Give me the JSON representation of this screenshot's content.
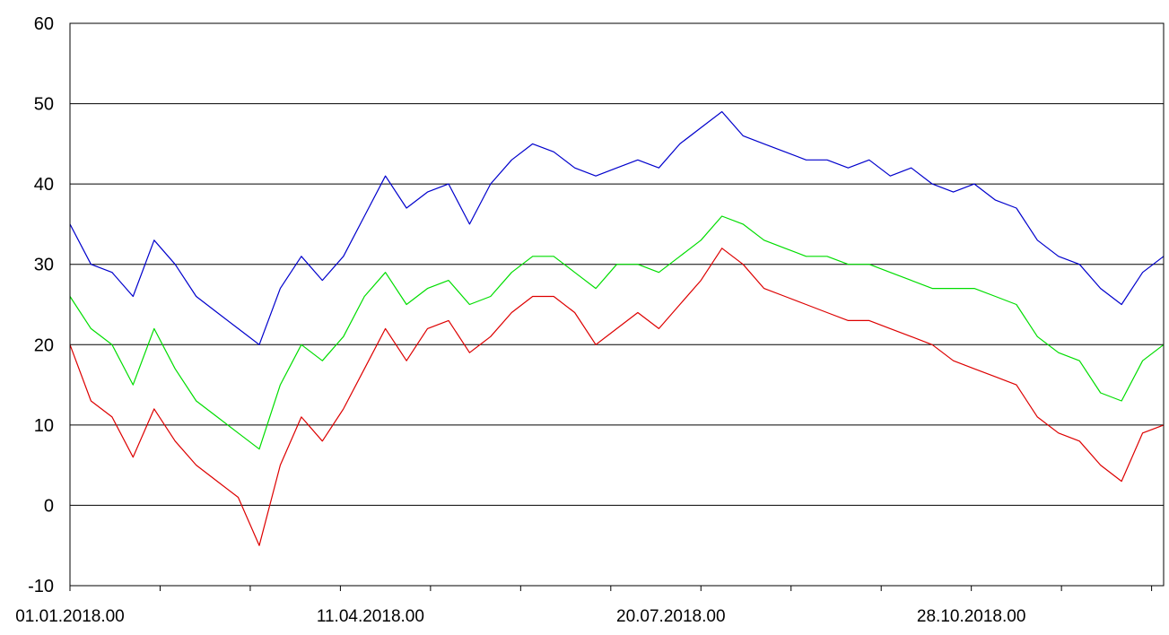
{
  "chart_data": {
    "type": "line",
    "title": "",
    "xlabel": "",
    "ylabel": "",
    "x_range": [
      "2018-01-01",
      "2018-12-31"
    ],
    "ylim": [
      -10,
      60
    ],
    "y_ticks": [
      -10,
      0,
      10,
      20,
      30,
      40,
      50,
      60
    ],
    "y_tick_labels": [
      "-10",
      "0",
      "10",
      "20",
      "30",
      "40",
      "50",
      "60"
    ],
    "x_tick_dates": [
      "2018-01-01",
      "2018-01-31",
      "2018-03-02",
      "2018-04-01",
      "2018-05-01",
      "2018-05-31",
      "2018-06-30",
      "2018-07-30",
      "2018-08-29",
      "2018-09-28",
      "2018-10-28",
      "2018-11-27",
      "2018-12-27"
    ],
    "x_labels": [
      {
        "date": "2018-01-01",
        "text": "01.01.2018.00"
      },
      {
        "date": "2018-04-11",
        "text": "11.04.2018.00"
      },
      {
        "date": "2018-07-20",
        "text": "20.07.2018.00"
      },
      {
        "date": "2018-10-28",
        "text": "28.10.2018.00"
      }
    ],
    "grid": "horizontal",
    "legend": "none",
    "series": [
      {
        "color": "#0000cc",
        "points": [
          [
            "2018-01-01",
            35
          ],
          [
            "2018-01-08",
            30
          ],
          [
            "2018-01-15",
            29
          ],
          [
            "2018-01-22",
            26
          ],
          [
            "2018-01-29",
            33
          ],
          [
            "2018-02-05",
            30
          ],
          [
            "2018-02-12",
            26
          ],
          [
            "2018-02-19",
            24
          ],
          [
            "2018-02-26",
            22
          ],
          [
            "2018-03-05",
            20
          ],
          [
            "2018-03-12",
            27
          ],
          [
            "2018-03-19",
            31
          ],
          [
            "2018-03-26",
            28
          ],
          [
            "2018-04-02",
            31
          ],
          [
            "2018-04-09",
            36
          ],
          [
            "2018-04-16",
            41
          ],
          [
            "2018-04-23",
            37
          ],
          [
            "2018-04-30",
            39
          ],
          [
            "2018-05-07",
            40
          ],
          [
            "2018-05-14",
            35
          ],
          [
            "2018-05-21",
            40
          ],
          [
            "2018-05-28",
            43
          ],
          [
            "2018-06-04",
            45
          ],
          [
            "2018-06-11",
            44
          ],
          [
            "2018-06-18",
            42
          ],
          [
            "2018-06-25",
            41
          ],
          [
            "2018-07-02",
            42
          ],
          [
            "2018-07-09",
            43
          ],
          [
            "2018-07-16",
            42
          ],
          [
            "2018-07-23",
            45
          ],
          [
            "2018-07-30",
            47
          ],
          [
            "2018-08-06",
            49
          ],
          [
            "2018-08-13",
            46
          ],
          [
            "2018-08-20",
            45
          ],
          [
            "2018-08-27",
            44
          ],
          [
            "2018-09-03",
            43
          ],
          [
            "2018-09-10",
            43
          ],
          [
            "2018-09-17",
            42
          ],
          [
            "2018-09-24",
            43
          ],
          [
            "2018-10-01",
            41
          ],
          [
            "2018-10-08",
            42
          ],
          [
            "2018-10-15",
            40
          ],
          [
            "2018-10-22",
            39
          ],
          [
            "2018-10-29",
            40
          ],
          [
            "2018-11-05",
            38
          ],
          [
            "2018-11-12",
            37
          ],
          [
            "2018-11-19",
            33
          ],
          [
            "2018-11-26",
            31
          ],
          [
            "2018-12-03",
            30
          ],
          [
            "2018-12-10",
            27
          ],
          [
            "2018-12-17",
            25
          ],
          [
            "2018-12-24",
            29
          ],
          [
            "2018-12-31",
            31
          ]
        ]
      },
      {
        "color": "#00dd00",
        "points": [
          [
            "2018-01-01",
            26
          ],
          [
            "2018-01-08",
            22
          ],
          [
            "2018-01-15",
            20
          ],
          [
            "2018-01-22",
            15
          ],
          [
            "2018-01-29",
            22
          ],
          [
            "2018-02-05",
            17
          ],
          [
            "2018-02-12",
            13
          ],
          [
            "2018-02-19",
            11
          ],
          [
            "2018-02-26",
            9
          ],
          [
            "2018-03-05",
            7
          ],
          [
            "2018-03-12",
            15
          ],
          [
            "2018-03-19",
            20
          ],
          [
            "2018-03-26",
            18
          ],
          [
            "2018-04-02",
            21
          ],
          [
            "2018-04-09",
            26
          ],
          [
            "2018-04-16",
            29
          ],
          [
            "2018-04-23",
            25
          ],
          [
            "2018-04-30",
            27
          ],
          [
            "2018-05-07",
            28
          ],
          [
            "2018-05-14",
            25
          ],
          [
            "2018-05-21",
            26
          ],
          [
            "2018-05-28",
            29
          ],
          [
            "2018-06-04",
            31
          ],
          [
            "2018-06-11",
            31
          ],
          [
            "2018-06-18",
            29
          ],
          [
            "2018-06-25",
            27
          ],
          [
            "2018-07-02",
            30
          ],
          [
            "2018-07-09",
            30
          ],
          [
            "2018-07-16",
            29
          ],
          [
            "2018-07-23",
            31
          ],
          [
            "2018-07-30",
            33
          ],
          [
            "2018-08-06",
            36
          ],
          [
            "2018-08-13",
            35
          ],
          [
            "2018-08-20",
            33
          ],
          [
            "2018-08-27",
            32
          ],
          [
            "2018-09-03",
            31
          ],
          [
            "2018-09-10",
            31
          ],
          [
            "2018-09-17",
            30
          ],
          [
            "2018-09-24",
            30
          ],
          [
            "2018-10-01",
            29
          ],
          [
            "2018-10-08",
            28
          ],
          [
            "2018-10-15",
            27
          ],
          [
            "2018-10-22",
            27
          ],
          [
            "2018-10-29",
            27
          ],
          [
            "2018-11-05",
            26
          ],
          [
            "2018-11-12",
            25
          ],
          [
            "2018-11-19",
            21
          ],
          [
            "2018-11-26",
            19
          ],
          [
            "2018-12-03",
            18
          ],
          [
            "2018-12-10",
            14
          ],
          [
            "2018-12-17",
            13
          ],
          [
            "2018-12-24",
            18
          ],
          [
            "2018-12-31",
            20
          ]
        ]
      },
      {
        "color": "#dd0000",
        "points": [
          [
            "2018-01-01",
            20
          ],
          [
            "2018-01-08",
            13
          ],
          [
            "2018-01-15",
            11
          ],
          [
            "2018-01-22",
            6
          ],
          [
            "2018-01-29",
            12
          ],
          [
            "2018-02-05",
            8
          ],
          [
            "2018-02-12",
            5
          ],
          [
            "2018-02-19",
            3
          ],
          [
            "2018-02-26",
            1
          ],
          [
            "2018-03-05",
            -5
          ],
          [
            "2018-03-12",
            5
          ],
          [
            "2018-03-19",
            11
          ],
          [
            "2018-03-26",
            8
          ],
          [
            "2018-04-02",
            12
          ],
          [
            "2018-04-09",
            17
          ],
          [
            "2018-04-16",
            22
          ],
          [
            "2018-04-23",
            18
          ],
          [
            "2018-04-30",
            22
          ],
          [
            "2018-05-07",
            23
          ],
          [
            "2018-05-14",
            19
          ],
          [
            "2018-05-21",
            21
          ],
          [
            "2018-05-28",
            24
          ],
          [
            "2018-06-04",
            26
          ],
          [
            "2018-06-11",
            26
          ],
          [
            "2018-06-18",
            24
          ],
          [
            "2018-06-25",
            20
          ],
          [
            "2018-07-02",
            22
          ],
          [
            "2018-07-09",
            24
          ],
          [
            "2018-07-16",
            22
          ],
          [
            "2018-07-23",
            25
          ],
          [
            "2018-07-30",
            28
          ],
          [
            "2018-08-06",
            32
          ],
          [
            "2018-08-13",
            30
          ],
          [
            "2018-08-20",
            27
          ],
          [
            "2018-08-27",
            26
          ],
          [
            "2018-09-03",
            25
          ],
          [
            "2018-09-10",
            24
          ],
          [
            "2018-09-17",
            23
          ],
          [
            "2018-09-24",
            23
          ],
          [
            "2018-10-01",
            22
          ],
          [
            "2018-10-08",
            21
          ],
          [
            "2018-10-15",
            20
          ],
          [
            "2018-10-22",
            18
          ],
          [
            "2018-10-29",
            17
          ],
          [
            "2018-11-05",
            16
          ],
          [
            "2018-11-12",
            15
          ],
          [
            "2018-11-19",
            11
          ],
          [
            "2018-11-26",
            9
          ],
          [
            "2018-12-03",
            8
          ],
          [
            "2018-12-10",
            5
          ],
          [
            "2018-12-17",
            3
          ],
          [
            "2018-12-24",
            9
          ],
          [
            "2018-12-31",
            10
          ]
        ]
      }
    ]
  }
}
